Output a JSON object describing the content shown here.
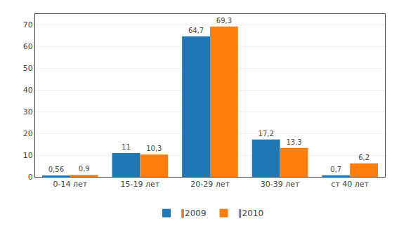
{
  "chart_data": {
    "type": "bar",
    "categories": [
      "0-14 лет",
      "15-19 лет",
      "20-29 лет",
      "30-39 лет",
      "ст 40 лет"
    ],
    "series": [
      {
        "name": "‖2009",
        "values": [
          0.56,
          11,
          64.7,
          17.2,
          0.7
        ],
        "value_labels": [
          "0,56",
          "11",
          "64,7",
          "17,2",
          "0,7"
        ]
      },
      {
        "name": "‖2010",
        "values": [
          0.9,
          10.3,
          69.3,
          13.3,
          6.2
        ],
        "value_labels": [
          "0,9",
          "10,3",
          "69,3",
          "13,3",
          "6,2"
        ]
      }
    ],
    "ylim": [
      0,
      75
    ],
    "yticks": [
      0,
      10,
      20,
      30,
      40,
      50,
      60,
      70
    ],
    "grid": true,
    "legend": "bottom",
    "data_labels": true
  }
}
